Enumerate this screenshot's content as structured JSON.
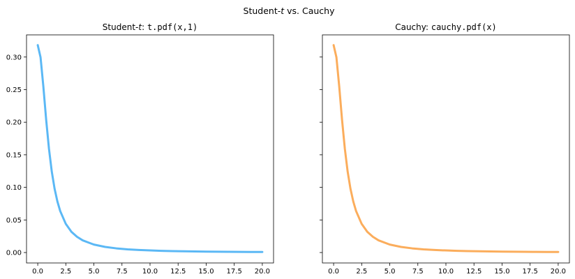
{
  "figure": {
    "suptitle": "Student-t vs. Cauchy",
    "suptitle_parts": {
      "pre": "Student-",
      "italic": "t",
      "post": " vs. Cauchy"
    }
  },
  "chart_data": [
    {
      "type": "line",
      "title": "Student-t: t.pdf(x,1)",
      "title_parts": {
        "pre": "Student-",
        "italic": "t",
        "colon": ": ",
        "code": "t.pdf(x,1)"
      },
      "xlabel": "",
      "ylabel": "",
      "xlim": [
        -1.0,
        21.0
      ],
      "ylim": [
        -0.016,
        0.334
      ],
      "xticks": [
        0.0,
        2.5,
        5.0,
        7.5,
        10.0,
        12.5,
        15.0,
        17.5,
        20.0
      ],
      "xtick_labels": [
        "0.0",
        "2.5",
        "5.0",
        "7.5",
        "10.0",
        "12.5",
        "15.0",
        "17.5",
        "20.0"
      ],
      "yticks": [
        0.0,
        0.05,
        0.1,
        0.15,
        0.2,
        0.25,
        0.3
      ],
      "ytick_labels": [
        "0.00",
        "0.05",
        "0.10",
        "0.15",
        "0.20",
        "0.25",
        "0.30"
      ],
      "grid": false,
      "color": "#5bb8f5",
      "series": [
        {
          "x": [
            0.0,
            0.25,
            0.5,
            0.75,
            1.0,
            1.25,
            1.5,
            1.75,
            2.0,
            2.5,
            3.0,
            3.5,
            4.0,
            5.0,
            6.0,
            7.0,
            8.0,
            9.0,
            10.0,
            11.0,
            12.0,
            13.0,
            14.0,
            15.0,
            16.0,
            17.0,
            18.0,
            19.0,
            20.0
          ],
          "y": [
            0.3183,
            0.2996,
            0.2546,
            0.2037,
            0.1592,
            0.1242,
            0.0979,
            0.0784,
            0.0637,
            0.0439,
            0.0318,
            0.0241,
            0.0187,
            0.0122,
            0.0086,
            0.0064,
            0.0049,
            0.0039,
            0.0032,
            0.0026,
            0.0022,
            0.0019,
            0.0016,
            0.0014,
            0.0012,
            0.0011,
            0.001,
            0.0009,
            0.0008
          ]
        }
      ]
    },
    {
      "type": "line",
      "title": "Cauchy: cauchy.pdf(x)",
      "title_parts": {
        "pre": "Cauchy",
        "italic": "",
        "colon": ": ",
        "code": "cauchy.pdf(x)"
      },
      "xlabel": "",
      "ylabel": "",
      "xlim": [
        -1.0,
        21.0
      ],
      "ylim": [
        -0.016,
        0.334
      ],
      "xticks": [
        0.0,
        2.5,
        5.0,
        7.5,
        10.0,
        12.5,
        15.0,
        17.5,
        20.0
      ],
      "xtick_labels": [
        "0.0",
        "2.5",
        "5.0",
        "7.5",
        "10.0",
        "12.5",
        "15.0",
        "17.5",
        "20.0"
      ],
      "yticks": [
        0.0,
        0.05,
        0.1,
        0.15,
        0.2,
        0.25,
        0.3
      ],
      "ytick_labels": [
        "",
        "",
        "",
        "",
        "",
        "",
        ""
      ],
      "grid": false,
      "color": "#fbad5c",
      "series": [
        {
          "x": [
            0.0,
            0.25,
            0.5,
            0.75,
            1.0,
            1.25,
            1.5,
            1.75,
            2.0,
            2.5,
            3.0,
            3.5,
            4.0,
            5.0,
            6.0,
            7.0,
            8.0,
            9.0,
            10.0,
            11.0,
            12.0,
            13.0,
            14.0,
            15.0,
            16.0,
            17.0,
            18.0,
            19.0,
            20.0
          ],
          "y": [
            0.3183,
            0.2996,
            0.2546,
            0.2037,
            0.1592,
            0.1242,
            0.0979,
            0.0784,
            0.0637,
            0.0439,
            0.0318,
            0.0241,
            0.0187,
            0.0122,
            0.0086,
            0.0064,
            0.0049,
            0.0039,
            0.0032,
            0.0026,
            0.0022,
            0.0019,
            0.0016,
            0.0014,
            0.0012,
            0.0011,
            0.001,
            0.0009,
            0.0008
          ]
        }
      ]
    }
  ]
}
